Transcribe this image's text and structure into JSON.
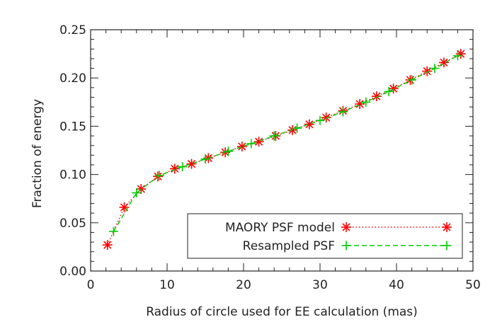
{
  "chart_data": {
    "type": "line",
    "xlabel": "Radius of circle used for EE calculation (mas)",
    "ylabel": "Fraction of energy",
    "xlim": [
      0,
      50
    ],
    "ylim": [
      0.0,
      0.25
    ],
    "x_ticks": [
      "0",
      "10",
      "20",
      "30",
      "40",
      "50"
    ],
    "y_ticks": [
      "0.00",
      "0.05",
      "0.10",
      "0.15",
      "0.20",
      "0.25"
    ],
    "grid": false,
    "legend_position": "bottom-right",
    "series": [
      {
        "name": "MAORY PSF model",
        "color": "#ff0000",
        "marker": "asterisk",
        "line_style": "dotted",
        "x": [
          2.2,
          4.4,
          6.6,
          8.8,
          11.0,
          13.2,
          15.4,
          17.6,
          19.8,
          22.0,
          24.2,
          26.4,
          28.6,
          30.8,
          33.0,
          35.2,
          37.4,
          39.6,
          41.8,
          44.0,
          46.2,
          48.4
        ],
        "y": [
          0.027,
          0.066,
          0.085,
          0.098,
          0.106,
          0.111,
          0.117,
          0.123,
          0.129,
          0.134,
          0.14,
          0.146,
          0.152,
          0.159,
          0.166,
          0.173,
          0.181,
          0.189,
          0.198,
          0.207,
          0.216,
          0.225
        ]
      },
      {
        "name": "Resampled PSF",
        "color": "#00cc00",
        "marker": "plus",
        "line_style": "dashed",
        "x": [
          3.0,
          6.0,
          9.0,
          12.0,
          15.0,
          18.0,
          21.0,
          24.0,
          27.0,
          30.0,
          33.0,
          36.0,
          39.0,
          42.0,
          45.0,
          48.0
        ],
        "y": [
          0.041,
          0.081,
          0.099,
          0.108,
          0.116,
          0.124,
          0.132,
          0.14,
          0.148,
          0.156,
          0.165,
          0.175,
          0.186,
          0.198,
          0.21,
          0.223
        ]
      }
    ]
  }
}
